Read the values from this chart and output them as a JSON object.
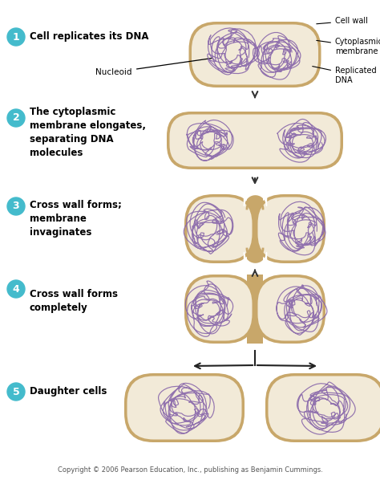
{
  "bg_color": "#ffffff",
  "cell_wall_color": "#c8a76a",
  "cell_inner_color": "#f2ead8",
  "dna_color": "#8866aa",
  "step_circle_color": "#44bbcc",
  "arrow_color": "#222222",
  "label_color": "#000000",
  "copyright_text": "Copyright © 2006 Pearson Education, Inc., publishing as Benjamin Cummings.",
  "step_labels": [
    "Cell replicates its DNA",
    "The cytoplasmic\nmembrane elongates,\nseparating DNA\nmolecules",
    "Cross wall forms;\nmembrane\ninvaginates",
    "Cross wall forms\ncompletely",
    "Daughter cells"
  ],
  "step_numbers": [
    "1",
    "2",
    "3",
    "4",
    "5"
  ],
  "annotation_nucleoid": "Nucleoid",
  "annotation_cellwall": "Cell wall",
  "annotation_cyto": "Cytoplasmic\nmembrane",
  "annotation_dna": "Replicated\nDNA",
  "cell_wall_thick": 5.0,
  "cell_wall_thick_inner": 3.0
}
